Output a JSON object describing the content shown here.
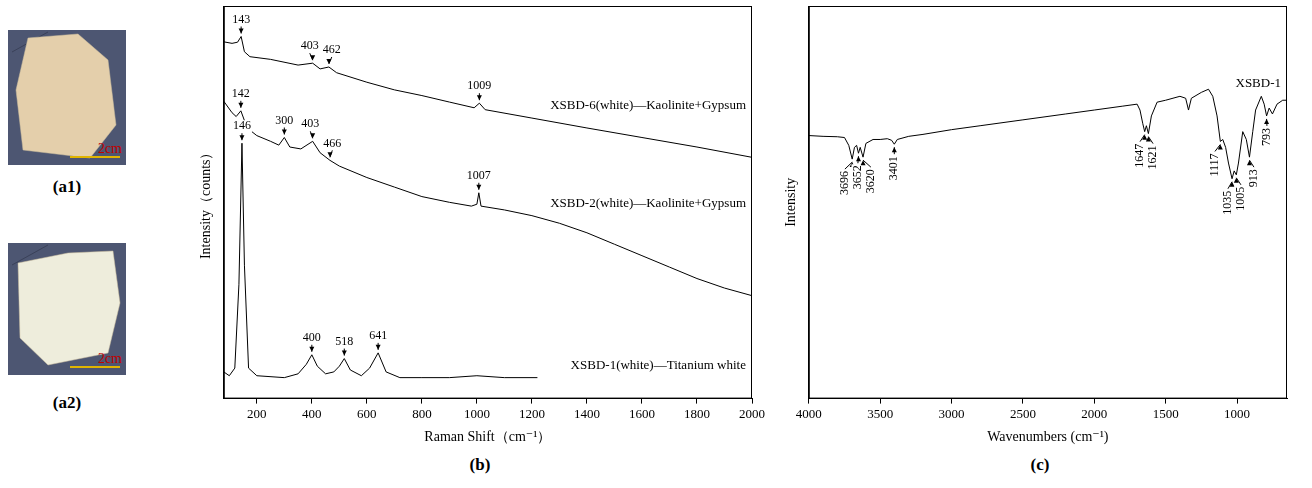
{
  "photos": [
    {
      "label": "(a1)",
      "scale_bar": "2cm"
    },
    {
      "label": "(a2)",
      "scale_bar": "2cm"
    }
  ],
  "chart_data": [
    {
      "panel": "(b)",
      "type": "line",
      "x_label": "Raman Shift（cm⁻¹）",
      "y_label": "Intensity（counts）",
      "xlim": [
        80,
        2000
      ],
      "xticks": [
        200,
        400,
        600,
        800,
        1000,
        1200,
        1400,
        1600,
        1800,
        2000
      ],
      "ylim": [
        0,
        103
      ],
      "tick_labels": "x",
      "grid": false,
      "series": [
        {
          "name": "XSBD-6(white)—Kaolinite+Gypsum",
          "color": "#000000",
          "x": [
            80,
            110,
            130,
            143,
            155,
            175,
            250,
            350,
            403,
            430,
            462,
            490,
            600,
            700,
            800,
            900,
            990,
            1009,
            1030,
            1200,
            1400,
            1600,
            1800,
            2000
          ],
          "values": [
            93.6,
            93.2,
            93.5,
            95,
            91,
            89.7,
            89,
            87.5,
            88,
            86.5,
            87,
            85.5,
            83,
            81,
            79.5,
            77.8,
            76.3,
            77.5,
            75.8,
            73.6,
            71,
            68.5,
            66,
            63.3
          ],
          "peaks": [
            143,
            403,
            462,
            1009
          ]
        },
        {
          "name": "XSBD-2(white)—Kaolinite+Gypsum",
          "color": "#000000",
          "x": [
            80,
            110,
            125,
            142,
            165,
            200,
            250,
            280,
            300,
            320,
            360,
            403,
            430,
            466,
            500,
            600,
            700,
            800,
            900,
            980,
            1000,
            1007,
            1015,
            1100,
            1200,
            1300,
            1400,
            1500,
            1600,
            1700,
            1800,
            1900,
            2000
          ],
          "values": [
            78,
            75,
            74,
            75.5,
            71,
            69,
            67.5,
            66.5,
            68.5,
            66,
            65.5,
            67.5,
            64.5,
            62.5,
            61,
            58,
            55.5,
            53,
            51.5,
            50.5,
            51,
            54,
            50.5,
            49.5,
            48,
            46,
            43.5,
            40.5,
            37.5,
            34.5,
            31.5,
            29,
            27
          ],
          "peaks": [
            142,
            300,
            403,
            466,
            1007
          ]
        },
        {
          "name": "XSBD-1(white)—Titanium white",
          "color": "#000000",
          "x": [
            80,
            100,
            120,
            135,
            146,
            155,
            170,
            200,
            300,
            350,
            380,
            400,
            420,
            450,
            480,
            500,
            518,
            540,
            580,
            610,
            641,
            670,
            720,
            800,
            900,
            1000,
            1100,
            1220
          ],
          "values": [
            7,
            6,
            8,
            30,
            67,
            35,
            8,
            6,
            5.5,
            6.5,
            9,
            11.5,
            8.5,
            6.5,
            7,
            8.5,
            10.5,
            7.5,
            6,
            8,
            12,
            7,
            5.5,
            5.5,
            5.5,
            6,
            5.5,
            5.5
          ],
          "peaks": [
            146,
            400,
            518,
            641
          ]
        }
      ]
    },
    {
      "panel": "(c)",
      "type": "line",
      "x_label": "Wavenumbers (cm⁻¹)",
      "y_label": "Intensity",
      "xlim": [
        4000,
        650
      ],
      "xticks": [
        4000,
        3500,
        3000,
        2500,
        2000,
        1500,
        1000
      ],
      "ylim": [
        0,
        100
      ],
      "tick_labels": "x",
      "grid": false,
      "series": [
        {
          "name": "XSBD-1",
          "color": "#000000",
          "x": [
            4000,
            3900,
            3800,
            3750,
            3720,
            3696,
            3680,
            3665,
            3652,
            3640,
            3620,
            3600,
            3550,
            3500,
            3450,
            3420,
            3401,
            3380,
            3300,
            3200,
            3000,
            2800,
            2500,
            2200,
            2000,
            1800,
            1700,
            1680,
            1660,
            1647,
            1635,
            1621,
            1600,
            1560,
            1500,
            1400,
            1360,
            1340,
            1320,
            1250,
            1200,
            1170,
            1140,
            1117,
            1100,
            1080,
            1060,
            1035,
            1020,
            1005,
            990,
            960,
            935,
            913,
            890,
            870,
            830,
            810,
            793,
            775,
            752,
            720,
            680,
            650
          ],
          "values": [
            67,
            66.8,
            66.7,
            66.5,
            64.5,
            61,
            64,
            64.5,
            62.5,
            64,
            61.5,
            65,
            66,
            66,
            66.2,
            65.8,
            64.8,
            66,
            66.8,
            67.3,
            68.5,
            69.5,
            71,
            72.5,
            73.5,
            74.5,
            75,
            73.5,
            70,
            68,
            69.5,
            67.5,
            72,
            75.5,
            76,
            77,
            76.5,
            73.5,
            76.5,
            78,
            78.8,
            77,
            72,
            65.5,
            66,
            64,
            60,
            56,
            58,
            57,
            60,
            68,
            66,
            61.5,
            68,
            73.5,
            77,
            75,
            72,
            74,
            72.5,
            75,
            76,
            76
          ],
          "peaks": [
            3696,
            3652,
            3620,
            3401,
            1647,
            1621,
            1117,
            1035,
            1005,
            913,
            793
          ]
        }
      ]
    }
  ]
}
